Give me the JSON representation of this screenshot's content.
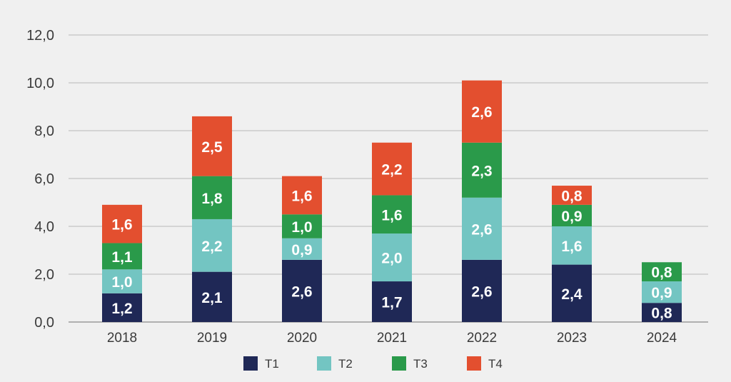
{
  "chart_data": {
    "type": "bar",
    "stacked": true,
    "title": "",
    "xlabel": "",
    "ylabel": "",
    "ylim": [
      0,
      12
    ],
    "yticks": [
      0,
      2,
      4,
      6,
      8,
      10,
      12
    ],
    "ytick_labels": [
      "0,0",
      "2,0",
      "4,0",
      "6,0",
      "8,0",
      "10,0",
      "12,0"
    ],
    "grid": true,
    "legend_position": "bottom",
    "categories": [
      "2018",
      "2019",
      "2020",
      "2021",
      "2022",
      "2023",
      "2024"
    ],
    "series": [
      {
        "name": "T1",
        "color": "#1f2856",
        "values": [
          1.2,
          2.1,
          2.6,
          1.7,
          2.6,
          2.4,
          0.8
        ],
        "labels": [
          "1,2",
          "2,1",
          "2,6",
          "1,7",
          "2,6",
          "2,4",
          "0,8"
        ]
      },
      {
        "name": "T2",
        "color": "#73c5c2",
        "values": [
          1.0,
          2.2,
          0.9,
          2.0,
          2.6,
          1.6,
          0.9
        ],
        "labels": [
          "1,0",
          "2,2",
          "0,9",
          "2,0",
          "2,6",
          "1,6",
          "0,9"
        ]
      },
      {
        "name": "T3",
        "color": "#2a9a4a",
        "values": [
          1.1,
          1.8,
          1.0,
          1.6,
          2.3,
          0.9,
          0.8
        ],
        "labels": [
          "1,1",
          "1,8",
          "1,0",
          "1,6",
          "2,3",
          "0,9",
          "0,8"
        ]
      },
      {
        "name": "T4",
        "color": "#e34f2f",
        "values": [
          1.6,
          2.5,
          1.6,
          2.2,
          2.6,
          0.8,
          null
        ],
        "labels": [
          "1,6",
          "2,5",
          "1,6",
          "2,2",
          "2,6",
          "0,8",
          null
        ]
      }
    ]
  }
}
